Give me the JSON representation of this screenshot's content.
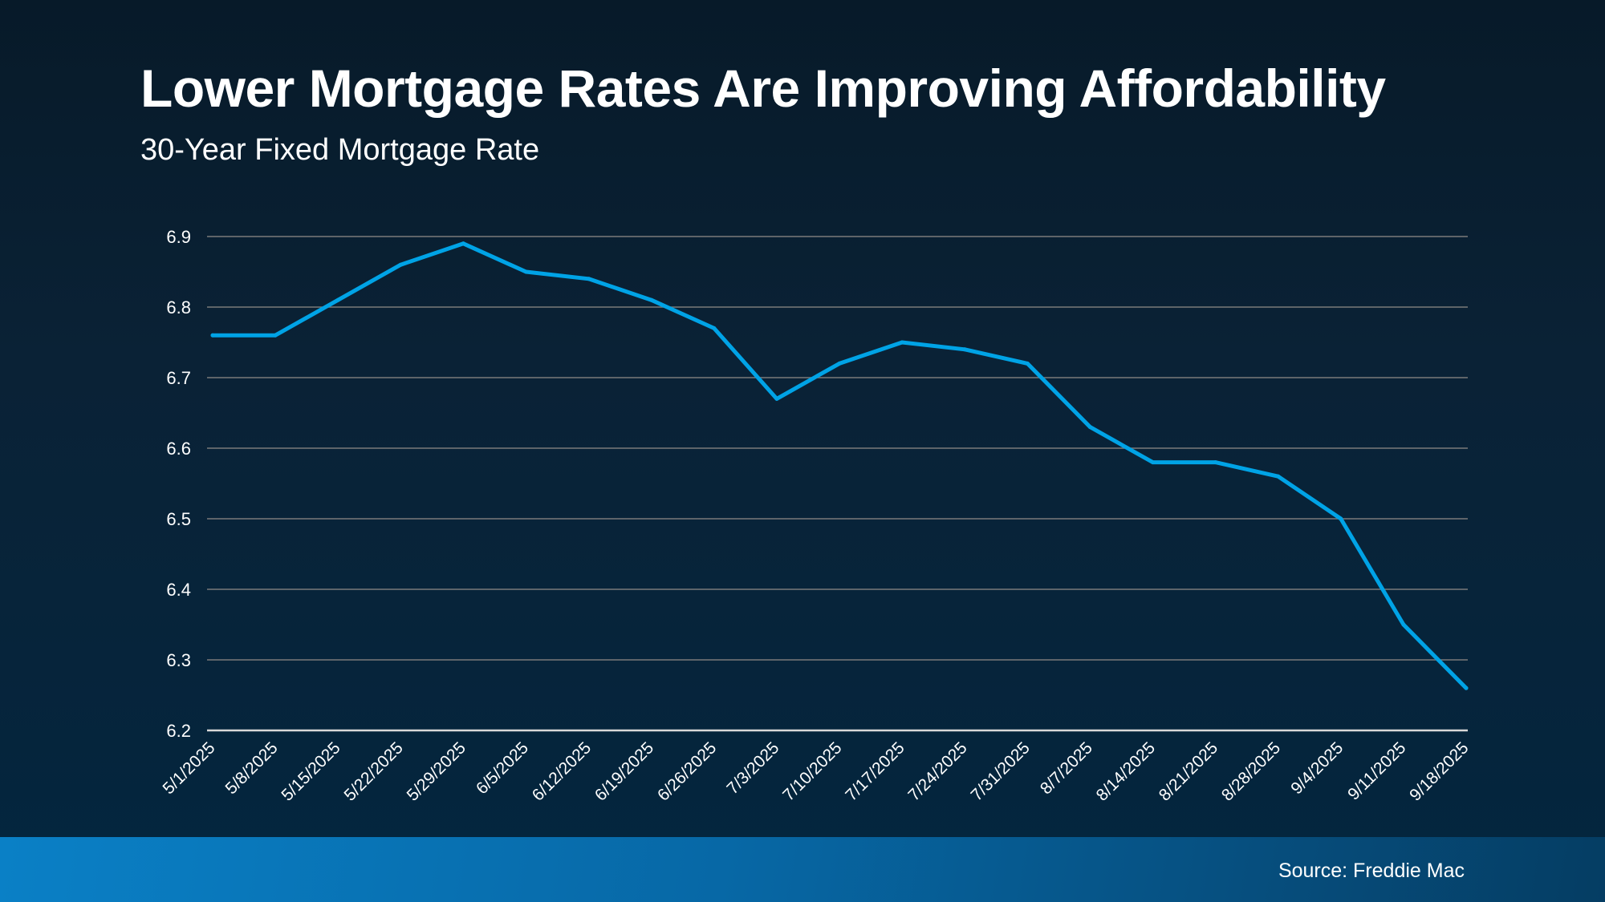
{
  "chart_data": {
    "type": "line",
    "title": "Lower Mortgage Rates Are Improving Affordability",
    "subtitle": "30-Year Fixed Mortgage Rate",
    "categories": [
      "5/1/2025",
      "5/8/2025",
      "5/15/2025",
      "5/22/2025",
      "5/29/2025",
      "6/5/2025",
      "6/12/2025",
      "6/19/2025",
      "6/26/2025",
      "7/3/2025",
      "7/10/2025",
      "7/17/2025",
      "7/24/2025",
      "7/31/2025",
      "8/7/2025",
      "8/14/2025",
      "8/21/2025",
      "8/28/2025",
      "9/4/2025",
      "9/11/2025",
      "9/18/2025"
    ],
    "series": [
      {
        "values": [
          6.76,
          6.76,
          6.81,
          6.86,
          6.89,
          6.85,
          6.84,
          6.81,
          6.77,
          6.67,
          6.72,
          6.75,
          6.74,
          6.72,
          6.63,
          6.58,
          6.58,
          6.56,
          6.5,
          6.35,
          6.26
        ],
        "color": "#00a3e6"
      }
    ],
    "yticks": [
      "6.2",
      "6.3",
      "6.4",
      "6.5",
      "6.6",
      "6.7",
      "6.8",
      "6.9"
    ],
    "ylim": [
      6.2,
      6.9
    ],
    "grid": true,
    "xlabel": "",
    "ylabel": ""
  },
  "footer": {
    "source": "Source: Freddie Mac"
  }
}
